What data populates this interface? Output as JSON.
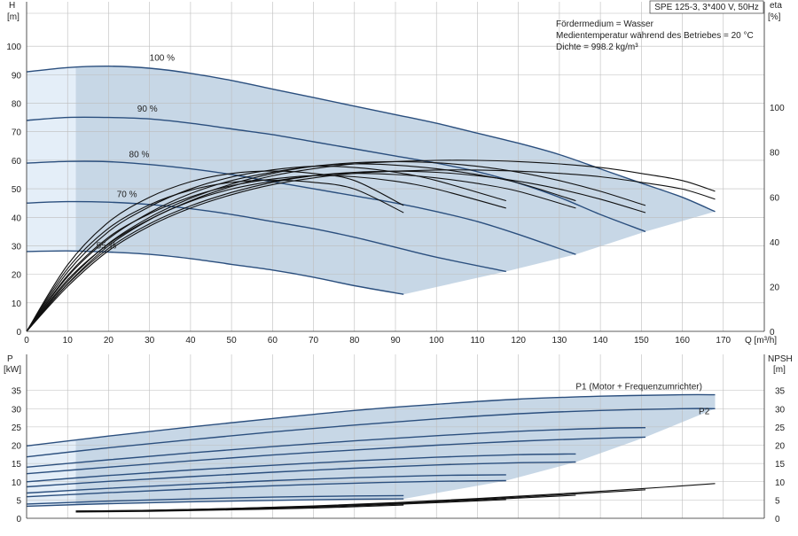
{
  "header": {
    "title": "SPE 125-3, 3*400 V, 50Hz",
    "info": [
      "Fördermedium = Wasser",
      "Medientemperatur während des Betriebes = 20 °C",
      "Dichte = 998.2 kg/m³"
    ]
  },
  "colors": {
    "band": "#c7d7e6",
    "band_light": "#e4eef8",
    "curve": "#2b4f7e",
    "efficiency": "#111111",
    "grid": "#bdbdbd"
  },
  "chart_data": [
    {
      "type": "line",
      "panel": "upper",
      "x_label": "Q [m³/h]",
      "y_left_label": [
        "H",
        "[m]"
      ],
      "y_right_label": [
        "eta",
        "[%]"
      ],
      "xlim": [
        0,
        180
      ],
      "x_ticks": [
        0,
        10,
        20,
        30,
        40,
        50,
        60,
        70,
        80,
        90,
        100,
        110,
        120,
        130,
        140,
        150,
        160,
        170
      ],
      "ylim": [
        0,
        110
      ],
      "y_ticks": [
        0,
        10,
        20,
        30,
        40,
        50,
        60,
        70,
        80,
        90,
        100
      ],
      "y_right_lim": [
        0,
        140
      ],
      "y_right_ticks": [
        0,
        20,
        40,
        60,
        80,
        100
      ],
      "grid": true,
      "head_series": [
        {
          "name": "100 %",
          "label_at": [
            30,
            95
          ],
          "x": [
            0,
            10,
            20,
            30,
            40,
            50,
            60,
            70,
            80,
            90,
            100,
            110,
            120,
            130,
            140,
            150,
            160,
            168
          ],
          "y": [
            91,
            92.5,
            93,
            92.3,
            90.5,
            88,
            85,
            82,
            79,
            76,
            73,
            69.5,
            66,
            62,
            57,
            52,
            47,
            42
          ]
        },
        {
          "name": "90 %",
          "label_at": [
            27,
            77
          ],
          "x": [
            0,
            10,
            20,
            30,
            40,
            50,
            60,
            70,
            80,
            90,
            100,
            110,
            120,
            130,
            140,
            151
          ],
          "y": [
            74,
            75,
            75,
            74.5,
            73,
            71,
            69,
            66.5,
            64,
            61.5,
            59,
            56,
            52,
            47,
            41,
            35
          ]
        },
        {
          "name": "80 %",
          "label_at": [
            25,
            61
          ],
          "x": [
            0,
            10,
            20,
            30,
            40,
            50,
            60,
            70,
            80,
            90,
            100,
            110,
            120,
            134
          ],
          "y": [
            59,
            59.6,
            59.5,
            58.5,
            57,
            55,
            52.5,
            50,
            47.5,
            45,
            42,
            38.5,
            34,
            27
          ]
        },
        {
          "name": "70 %",
          "label_at": [
            22,
            47
          ],
          "x": [
            0,
            10,
            20,
            30,
            40,
            50,
            60,
            70,
            80,
            90,
            100,
            117
          ],
          "y": [
            45,
            45.5,
            45.3,
            44.5,
            43,
            41,
            38.5,
            36,
            33,
            29.5,
            26,
            21
          ]
        },
        {
          "name": "55 %",
          "label_at": [
            17,
            29
          ],
          "x": [
            0,
            10,
            20,
            30,
            40,
            50,
            60,
            70,
            80,
            92
          ],
          "y": [
            28,
            28.2,
            27.8,
            27,
            25.5,
            23.5,
            21.5,
            19,
            16,
            13
          ]
        }
      ],
      "efficiency_series": [
        {
          "x": [
            0,
            10,
            20,
            30,
            40,
            50,
            60,
            70,
            80,
            90,
            100,
            110,
            120,
            130,
            140,
            150,
            160,
            168
          ],
          "y": [
            0,
            20,
            36,
            47,
            55,
            61,
            65.5,
            68.5,
            70.5,
            71.5,
            72,
            72,
            71.5,
            70.5,
            69,
            66.5,
            63.5,
            59
          ]
        },
        {
          "x": [
            0,
            10,
            20,
            30,
            40,
            50,
            60,
            70,
            80,
            90,
            100,
            110,
            120,
            130,
            140,
            151
          ],
          "y": [
            0,
            21,
            37,
            48,
            56,
            62,
            66.5,
            69.5,
            71,
            71.5,
            71,
            69.5,
            67,
            63.5,
            59,
            53
          ]
        },
        {
          "x": [
            0,
            10,
            20,
            30,
            40,
            50,
            60,
            70,
            80,
            90,
            100,
            110,
            120,
            134
          ],
          "y": [
            0,
            23,
            39,
            50,
            58,
            63.5,
            67,
            69.5,
            70.5,
            70,
            68.5,
            66,
            62.5,
            55
          ]
        },
        {
          "x": [
            0,
            10,
            20,
            30,
            40,
            50,
            60,
            70,
            80,
            90,
            100,
            117
          ],
          "y": [
            0,
            25,
            42,
            52.5,
            60,
            65,
            68,
            69.5,
            69,
            67,
            63.5,
            55
          ]
        },
        {
          "x": [
            0,
            10,
            20,
            30,
            40,
            50,
            60,
            70,
            80,
            92
          ],
          "y": [
            0,
            28,
            46,
            56.5,
            63,
            66.5,
            67.5,
            66.5,
            63.5,
            53
          ]
        }
      ]
    },
    {
      "type": "line",
      "panel": "lower",
      "x_label": "",
      "y_left_label": [
        "P",
        "[kW]"
      ],
      "y_right_label": [
        "NPSH",
        "[m]"
      ],
      "xlim": [
        0,
        180
      ],
      "ylim": [
        0,
        40
      ],
      "y_ticks": [
        0,
        5,
        10,
        15,
        20,
        25,
        30,
        35
      ],
      "grid": true,
      "power_series": [
        {
          "name": "P1 (Motor + Frequenzumrichter)",
          "label_at": [
            134,
            35.3
          ],
          "x": [
            0,
            20,
            40,
            60,
            80,
            100,
            120,
            140,
            160,
            168
          ],
          "y": [
            19.8,
            22.5,
            25,
            27.3,
            29.5,
            31.2,
            32.6,
            33.4,
            33.8,
            33.8
          ]
        },
        {
          "name": "P2",
          "label_at": [
            164,
            28.5
          ],
          "x": [
            0,
            20,
            40,
            60,
            80,
            100,
            120,
            140,
            160,
            168
          ],
          "y": [
            16.8,
            19.3,
            21.5,
            23.6,
            25.5,
            27.2,
            28.6,
            29.5,
            30,
            30
          ]
        },
        {
          "x": [
            0,
            20,
            40,
            60,
            80,
            100,
            120,
            140,
            151
          ],
          "y": [
            14,
            16,
            17.9,
            19.6,
            21.2,
            22.6,
            23.8,
            24.6,
            24.8
          ]
        },
        {
          "x": [
            0,
            20,
            40,
            60,
            80,
            100,
            120,
            140,
            151
          ],
          "y": [
            12.2,
            14,
            15.7,
            17.3,
            18.7,
            20,
            21.1,
            21.9,
            22.2
          ]
        },
        {
          "x": [
            0,
            20,
            40,
            60,
            80,
            100,
            120,
            134
          ],
          "y": [
            10,
            11.7,
            13.2,
            14.5,
            15.7,
            16.7,
            17.4,
            17.6
          ]
        },
        {
          "x": [
            0,
            20,
            40,
            60,
            80,
            100,
            120,
            134
          ],
          "y": [
            8.6,
            10.1,
            11.4,
            12.6,
            13.7,
            14.6,
            15.2,
            15.4
          ]
        },
        {
          "x": [
            0,
            20,
            40,
            60,
            80,
            100,
            117
          ],
          "y": [
            6.9,
            8.2,
            9.3,
            10.3,
            11.1,
            11.7,
            11.9
          ]
        },
        {
          "x": [
            0,
            20,
            40,
            60,
            80,
            100,
            117
          ],
          "y": [
            5.9,
            7,
            8,
            8.9,
            9.6,
            10.1,
            10.3
          ]
        },
        {
          "x": [
            0,
            20,
            40,
            60,
            80,
            92
          ],
          "y": [
            3.9,
            4.7,
            5.3,
            5.8,
            6.1,
            6.2
          ]
        },
        {
          "x": [
            0,
            20,
            40,
            60,
            80,
            92
          ],
          "y": [
            3.3,
            4,
            4.5,
            4.9,
            5.2,
            5.3
          ]
        }
      ],
      "npsh_series": [
        {
          "x": [
            12,
            30,
            50,
            70,
            90,
            110,
            130,
            150,
            168
          ],
          "y": [
            2,
            2.2,
            2.7,
            3.4,
            4.3,
            5.4,
            6.7,
            8.1,
            9.5
          ]
        },
        {
          "x": [
            12,
            30,
            50,
            70,
            90,
            110,
            130,
            151
          ],
          "y": [
            2,
            2.2,
            2.7,
            3.3,
            4.2,
            5.2,
            6.4,
            7.8
          ]
        },
        {
          "x": [
            12,
            30,
            50,
            70,
            90,
            110,
            134
          ],
          "y": [
            1.9,
            2.1,
            2.6,
            3.2,
            4,
            5,
            6.3
          ]
        },
        {
          "x": [
            12,
            30,
            50,
            70,
            90,
            117
          ],
          "y": [
            1.8,
            2,
            2.4,
            3,
            3.8,
            5.1
          ]
        },
        {
          "x": [
            12,
            30,
            50,
            70,
            92
          ],
          "y": [
            1.7,
            1.9,
            2.3,
            2.8,
            3.6
          ]
        }
      ]
    }
  ]
}
